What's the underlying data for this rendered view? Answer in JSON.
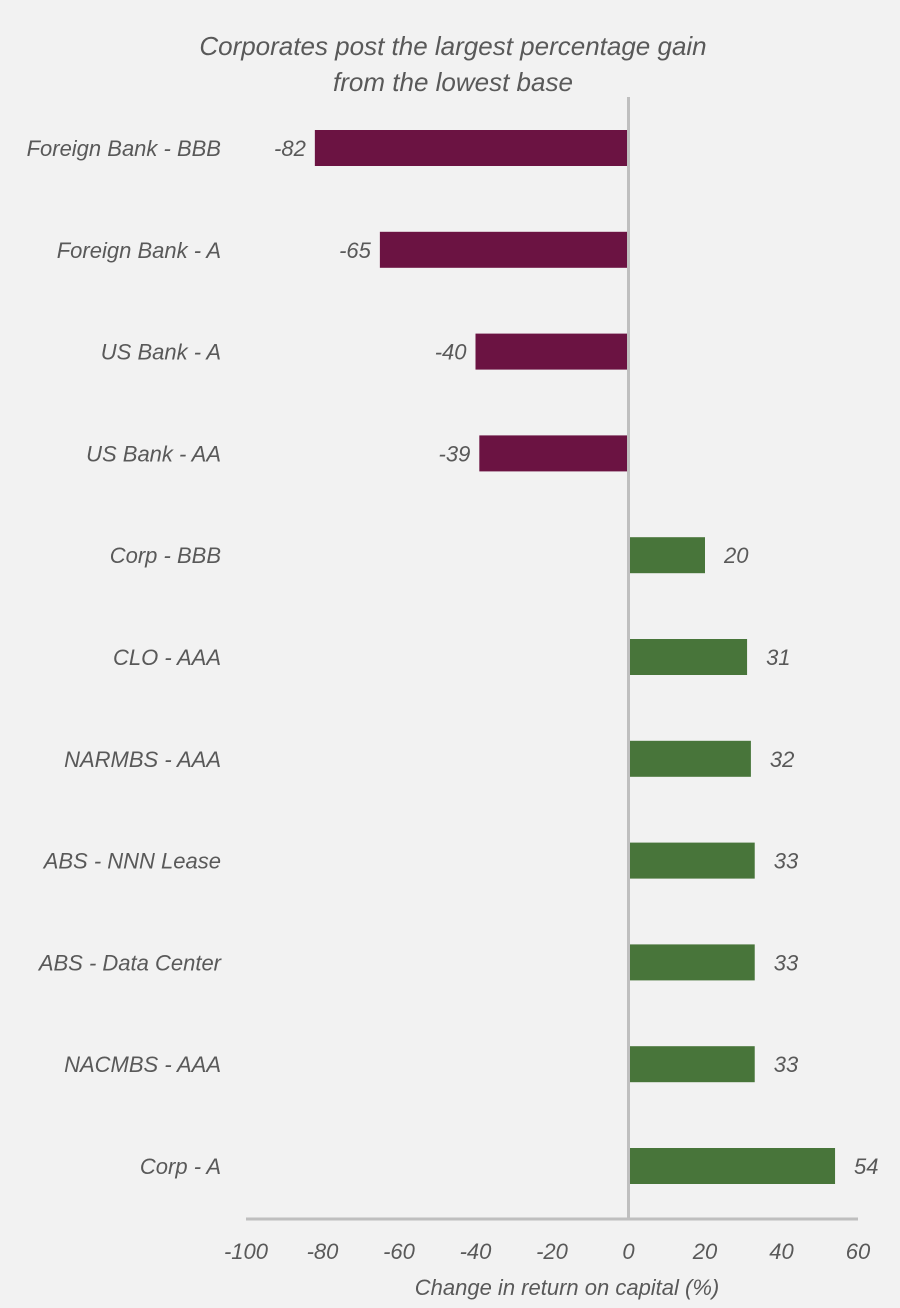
{
  "chart_data": {
    "type": "bar",
    "orientation": "horizontal",
    "title_lines": [
      "Corporates post the largest percentage gain",
      "from the lowest base"
    ],
    "xlabel": "Change in return on capital (%)",
    "ylabel": "",
    "xlim": [
      -100,
      60
    ],
    "x_ticks": [
      "-100",
      "-80",
      "-60",
      "-40",
      "-20",
      "0",
      "20",
      "40",
      "60"
    ],
    "x_tick_values": [
      -100,
      -80,
      -60,
      -40,
      -20,
      0,
      20,
      40,
      60
    ],
    "categories": [
      "Foreign Bank - BBB",
      "Foreign Bank - A",
      "US Bank - A",
      "US Bank - AA",
      "Corp - BBB",
      "CLO - AAA",
      "NARMBS - AAA",
      "ABS - NNN Lease",
      "ABS - Data Center",
      "NACMBS - AAA",
      "Corp - A"
    ],
    "values": [
      -82,
      -65,
      -40,
      -39,
      20,
      31,
      32,
      33,
      33,
      33,
      54
    ],
    "value_labels": [
      "-82",
      "-65",
      "-40",
      "-39",
      "20",
      "31",
      "32",
      "33",
      "33",
      "33",
      "54"
    ],
    "grid": false,
    "legend": "none",
    "colors": {
      "negative": "#6b1342",
      "positive": "#48753a",
      "axis": "#bfbfbf",
      "text": "#595959"
    }
  }
}
